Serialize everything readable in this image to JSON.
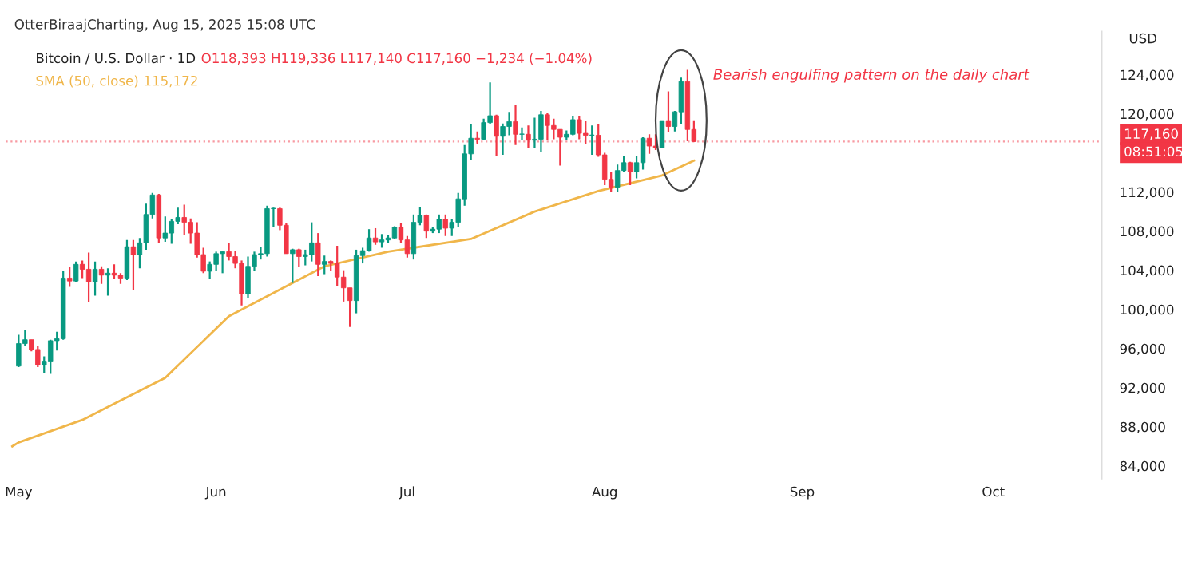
{
  "chart_data": {
    "type": "candlestick",
    "title": "Bitcoin / U.S. Dollar · 1D",
    "ylabel": "USD",
    "annotations": [
      "OtterBiraajCharting, Aug 15, 2025 15:08 UTC",
      "O118,393 H119,336 L117,140 C117,160 −1,234 (−1.04%)",
      "115,172",
      "Bearish engulfing pattern on the daily chart",
      "08:51:05"
    ],
    "colors": [
      "#089981",
      "#089981",
      "#f23645",
      "#f23645",
      "#089981",
      "#089981",
      "#089981",
      "#089981",
      "#f23645",
      "#089981",
      "#f23645",
      "#f23645",
      "#089981",
      "#f23645",
      "#089981",
      "#f23645",
      "#f23645",
      "#089981",
      "#f23645",
      "#089981",
      "#089981",
      "#089981",
      "#f23645",
      "#089981",
      "#089981",
      "#089981",
      "#f23645",
      "#f23645",
      "#f23645",
      "#f23645",
      "#089981",
      "#089981",
      "#089981",
      "#f23645",
      "#f23645",
      "#f23645",
      "#089981",
      "#089981",
      "#089981",
      "#089981",
      "#089981",
      "#f23645",
      "#f23645",
      "#089981",
      "#f23645",
      "#089981",
      "#089981",
      "#f23645",
      "#089981",
      "#f23645",
      "#f23645",
      "#f23645",
      "#f23645",
      "#089981",
      "#089981",
      "#089981",
      "#f23645",
      "#089981",
      "#089981",
      "#089981",
      "#f23645",
      "#f23645",
      "#089981",
      "#089981",
      "#f23645",
      "#089981",
      "#089981",
      "#f23645",
      "#089981",
      "#089981",
      "#089981",
      "#089981",
      "#f23645",
      "#089981",
      "#089981",
      "#f23645",
      "#089981",
      "#089981",
      "#f23645",
      "#089981",
      "#f23645",
      "#089981",
      "#089981",
      "#f23645",
      "#f23645",
      "#f23645",
      "#089981",
      "#089981",
      "#f23645",
      "#f23645",
      "#089981",
      "#f23645",
      "#f23645",
      "#f23645",
      "#089981",
      "#089981",
      "#f23645",
      "#089981",
      "#089981",
      "#f23645",
      "#f23645",
      "#089981",
      "#f23645",
      "#089981",
      "#089981",
      "#f23645",
      "#f23645"
    ],
    "x": [
      "2025-05-01",
      "2025-05-02",
      "2025-05-03",
      "2025-05-04",
      "2025-05-05",
      "2025-05-06",
      "2025-05-07",
      "2025-05-08",
      "2025-05-09",
      "2025-05-10",
      "2025-05-11",
      "2025-05-12",
      "2025-05-13",
      "2025-05-14",
      "2025-05-15",
      "2025-05-16",
      "2025-05-17",
      "2025-05-18",
      "2025-05-19",
      "2025-05-20",
      "2025-05-21",
      "2025-05-22",
      "2025-05-23",
      "2025-05-24",
      "2025-05-25",
      "2025-05-26",
      "2025-05-27",
      "2025-05-28",
      "2025-05-29",
      "2025-05-30",
      "2025-05-31",
      "2025-06-01",
      "2025-06-02",
      "2025-06-03",
      "2025-06-04",
      "2025-06-05",
      "2025-06-06",
      "2025-06-07",
      "2025-06-08",
      "2025-06-09",
      "2025-06-10",
      "2025-06-11",
      "2025-06-12",
      "2025-06-13",
      "2025-06-14",
      "2025-06-15",
      "2025-06-16",
      "2025-06-17",
      "2025-06-18",
      "2025-06-19",
      "2025-06-20",
      "2025-06-21",
      "2025-06-22",
      "2025-06-23",
      "2025-06-24",
      "2025-06-25",
      "2025-06-26",
      "2025-06-27",
      "2025-06-28",
      "2025-06-29",
      "2025-06-30",
      "2025-07-01",
      "2025-07-02",
      "2025-07-03",
      "2025-07-04",
      "2025-07-05",
      "2025-07-06",
      "2025-07-07",
      "2025-07-08",
      "2025-07-09",
      "2025-07-10",
      "2025-07-11",
      "2025-07-12",
      "2025-07-13",
      "2025-07-14",
      "2025-07-15",
      "2025-07-16",
      "2025-07-17",
      "2025-07-18",
      "2025-07-19",
      "2025-07-20",
      "2025-07-21",
      "2025-07-22",
      "2025-07-23",
      "2025-07-24",
      "2025-07-25",
      "2025-07-26",
      "2025-07-27",
      "2025-07-28",
      "2025-07-29",
      "2025-07-30",
      "2025-07-31",
      "2025-08-01",
      "2025-08-02",
      "2025-08-03",
      "2025-08-04",
      "2025-08-05",
      "2025-08-06",
      "2025-08-07",
      "2025-08-08",
      "2025-08-09",
      "2025-08-10",
      "2025-08-11",
      "2025-08-12",
      "2025-08-13",
      "2025-08-14",
      "2025-08-15"
    ],
    "ohlc": [
      [
        94200,
        97400,
        94100,
        96500
      ],
      [
        96500,
        97900,
        96300,
        96900
      ],
      [
        96900,
        96900,
        95700,
        95900
      ],
      [
        95900,
        96300,
        94100,
        94300
      ],
      [
        94300,
        95200,
        93500,
        94700
      ],
      [
        94700,
        96900,
        93400,
        96800
      ],
      [
        96800,
        97700,
        95800,
        97000
      ],
      [
        97000,
        103900,
        96900,
        103200
      ],
      [
        103200,
        104300,
        102300,
        102900
      ],
      [
        102900,
        104900,
        102800,
        104600
      ],
      [
        104600,
        105000,
        103200,
        104100
      ],
      [
        104100,
        105800,
        100700,
        102800
      ],
      [
        102800,
        104900,
        101400,
        104100
      ],
      [
        104100,
        104400,
        102600,
        103500
      ],
      [
        103500,
        104200,
        101400,
        103700
      ],
      [
        103700,
        104600,
        103100,
        103500
      ],
      [
        103500,
        103700,
        102600,
        103200
      ],
      [
        103200,
        107100,
        103000,
        106400
      ],
      [
        106400,
        107100,
        102000,
        105600
      ],
      [
        105600,
        107300,
        104200,
        106800
      ],
      [
        106800,
        110800,
        106100,
        109700
      ],
      [
        109700,
        111900,
        109300,
        111700
      ],
      [
        111700,
        111800,
        106800,
        107300
      ],
      [
        107300,
        109500,
        106900,
        107800
      ],
      [
        107800,
        109200,
        106700,
        109000
      ],
      [
        109000,
        110400,
        108700,
        109400
      ],
      [
        109400,
        110700,
        107600,
        108900
      ],
      [
        108900,
        109300,
        106700,
        107800
      ],
      [
        107800,
        108900,
        105300,
        105600
      ],
      [
        105600,
        106300,
        103700,
        103900
      ],
      [
        103900,
        104900,
        103100,
        104600
      ],
      [
        104600,
        105900,
        103900,
        105700
      ],
      [
        105700,
        105900,
        103700,
        105900
      ],
      [
        105900,
        106800,
        105000,
        105400
      ],
      [
        105400,
        106000,
        104200,
        104700
      ],
      [
        104700,
        105000,
        100400,
        101600
      ],
      [
        101600,
        105400,
        101200,
        104400
      ],
      [
        104400,
        105900,
        103900,
        105600
      ],
      [
        105600,
        106400,
        105100,
        105700
      ],
      [
        105700,
        110600,
        105400,
        110300
      ],
      [
        110300,
        110400,
        108400,
        110300
      ],
      [
        110300,
        110400,
        108100,
        108600
      ],
      [
        108600,
        108800,
        105700,
        105700
      ],
      [
        105700,
        106200,
        102700,
        106100
      ],
      [
        106100,
        106200,
        104300,
        105400
      ],
      [
        105400,
        106100,
        104500,
        105600
      ],
      [
        105600,
        108900,
        104900,
        106800
      ],
      [
        106800,
        107800,
        103400,
        104600
      ],
      [
        104600,
        105500,
        103600,
        104900
      ],
      [
        104900,
        105000,
        103900,
        104700
      ],
      [
        104700,
        106500,
        102400,
        103300
      ],
      [
        103300,
        104000,
        100800,
        102200
      ],
      [
        102200,
        102200,
        98200,
        100900
      ],
      [
        100900,
        106100,
        99600,
        105500
      ],
      [
        105500,
        106300,
        104700,
        106000
      ],
      [
        106000,
        108200,
        105900,
        107300
      ],
      [
        107300,
        108300,
        106600,
        106900
      ],
      [
        106900,
        107700,
        106300,
        107100
      ],
      [
        107100,
        107600,
        106800,
        107300
      ],
      [
        107300,
        108500,
        107200,
        108400
      ],
      [
        108400,
        108800,
        106800,
        107100
      ],
      [
        107100,
        107500,
        105300,
        105700
      ],
      [
        105700,
        109700,
        105100,
        108900
      ],
      [
        108900,
        110500,
        108600,
        109600
      ],
      [
        109600,
        109700,
        107300,
        108000
      ],
      [
        108000,
        108400,
        107800,
        108200
      ],
      [
        108200,
        109700,
        107800,
        109200
      ],
      [
        109200,
        109700,
        107500,
        108300
      ],
      [
        108300,
        109200,
        107500,
        108900
      ],
      [
        108900,
        111900,
        108400,
        111300
      ],
      [
        111300,
        116800,
        110600,
        115900
      ],
      [
        115900,
        118900,
        115300,
        117500
      ],
      [
        117500,
        118200,
        116900,
        117400
      ],
      [
        117400,
        119500,
        117300,
        119100
      ],
      [
        119100,
        123200,
        118900,
        119800
      ],
      [
        119800,
        119900,
        115700,
        117700
      ],
      [
        117700,
        119000,
        115800,
        118700
      ],
      [
        118700,
        120200,
        117800,
        119200
      ],
      [
        119200,
        120900,
        116800,
        117900
      ],
      [
        117900,
        118600,
        117300,
        117900
      ],
      [
        117900,
        118800,
        116500,
        117300
      ],
      [
        117300,
        119600,
        116500,
        117400
      ],
      [
        117400,
        120300,
        116100,
        119900
      ],
      [
        119900,
        120100,
        117300,
        118800
      ],
      [
        118800,
        119500,
        117400,
        118400
      ],
      [
        118400,
        118400,
        114700,
        117600
      ],
      [
        117600,
        118300,
        117300,
        117900
      ],
      [
        117900,
        119800,
        117800,
        119400
      ],
      [
        119400,
        119800,
        117400,
        118000
      ],
      [
        118000,
        119300,
        116900,
        117800
      ],
      [
        117800,
        118800,
        115800,
        117800
      ],
      [
        117800,
        118900,
        115600,
        115800
      ],
      [
        115800,
        116000,
        112700,
        113300
      ],
      [
        113300,
        114000,
        112000,
        112500
      ],
      [
        112500,
        114800,
        112000,
        114200
      ],
      [
        114200,
        115700,
        114100,
        115000
      ],
      [
        115000,
        115100,
        112700,
        114100
      ],
      [
        114100,
        115700,
        113400,
        115000
      ],
      [
        115000,
        117600,
        114300,
        117500
      ],
      [
        117500,
        117900,
        115900,
        116700
      ],
      [
        116700,
        117900,
        116300,
        116500
      ],
      [
        116500,
        119300,
        116500,
        119300
      ],
      [
        119300,
        122300,
        118100,
        118700
      ],
      [
        118700,
        120300,
        118200,
        120200
      ],
      [
        120200,
        123700,
        118900,
        123300
      ],
      [
        123300,
        124500,
        117200,
        118393
      ],
      [
        118393,
        119336,
        117140,
        117160
      ]
    ],
    "series": [
      {
        "type": "line",
        "name": "SMA (50, close)",
        "color": "#f0b64a",
        "x": [
          "2025-04-30",
          "2025-05-01",
          "2025-05-11",
          "2025-05-24",
          "2025-06-03",
          "2025-06-18",
          "2025-06-28",
          "2025-07-11",
          "2025-07-21",
          "2025-07-31",
          "2025-08-10",
          "2025-08-15"
        ],
        "values": [
          86000,
          86400,
          88700,
          93000,
          99300,
          104400,
          105900,
          107200,
          110000,
          112100,
          113700,
          115200
        ]
      }
    ],
    "xlim": [
      "2025-04-29",
      "2025-10-18"
    ],
    "xticks": [
      {
        "value": "2025-05-01",
        "label": "May"
      },
      {
        "value": "2025-06-01",
        "label": "Jun"
      },
      {
        "value": "2025-07-01",
        "label": "Jul"
      },
      {
        "value": "2025-08-01",
        "label": "Aug"
      },
      {
        "value": "2025-09-01",
        "label": "Sep"
      },
      {
        "value": "2025-10-01",
        "label": "Oct"
      }
    ],
    "ylim": [
      82700,
      128400
    ],
    "yticks": [
      {
        "value": 84000,
        "label": "84,000"
      },
      {
        "value": 88000,
        "label": "88,000"
      },
      {
        "value": 92000,
        "label": "92,000"
      },
      {
        "value": 96000,
        "label": "96,000"
      },
      {
        "value": 100000,
        "label": "100,000"
      },
      {
        "value": 104000,
        "label": "104,000"
      },
      {
        "value": 108000,
        "label": "108,000"
      },
      {
        "value": 112000,
        "label": "112,000"
      },
      {
        "value": 120000,
        "label": "120,000"
      },
      {
        "value": 124000,
        "label": "124,000"
      }
    ],
    "ref_lines": [
      {
        "axis": "y",
        "value": 117160,
        "label": "117,160",
        "color": "#f23645",
        "line_style": "dotted"
      }
    ],
    "grid": false,
    "legend": false
  }
}
